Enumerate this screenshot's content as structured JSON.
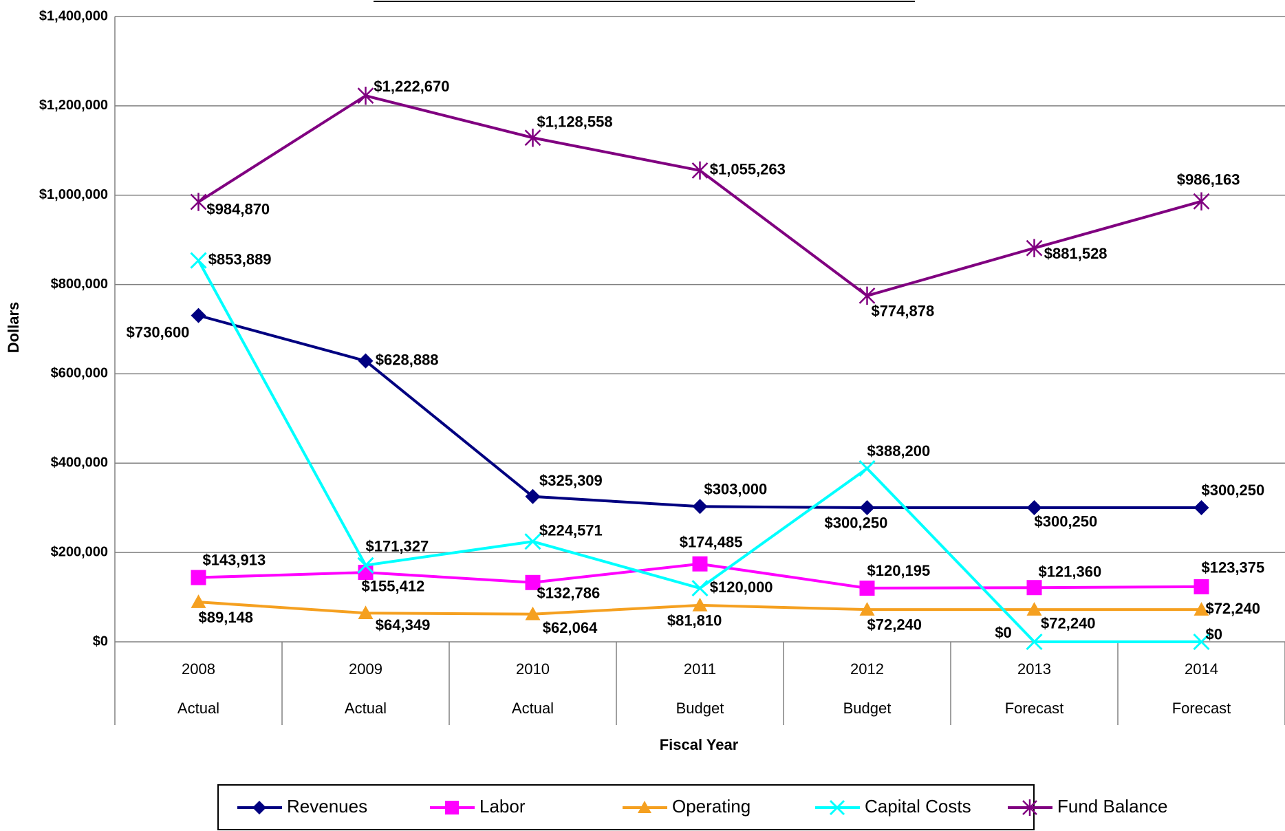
{
  "chart_data": {
    "type": "line",
    "y_axis_label": "Dollars",
    "x_axis_label": "Fiscal Year",
    "categories": [
      [
        "2008",
        "Actual"
      ],
      [
        "2009",
        "Actual"
      ],
      [
        "2010",
        "Actual"
      ],
      [
        "2011",
        "Budget"
      ],
      [
        "2012",
        "Budget"
      ],
      [
        "2013",
        "Forecast"
      ],
      [
        "2014",
        "Forecast"
      ]
    ],
    "ylim": [
      0,
      1400000
    ],
    "yticks": [
      {
        "value": 0,
        "label": "$0"
      },
      {
        "value": 200000,
        "label": "$200,000"
      },
      {
        "value": 400000,
        "label": "$400,000"
      },
      {
        "value": 600000,
        "label": "$600,000"
      },
      {
        "value": 800000,
        "label": "$800,000"
      },
      {
        "value": 1000000,
        "label": "$1,000,000"
      },
      {
        "value": 1200000,
        "label": "$1,200,000"
      },
      {
        "value": 1400000,
        "label": "$1,400,000"
      }
    ],
    "grid": true,
    "legend": "bottom",
    "series": [
      {
        "name": "Revenues",
        "color": "#000080",
        "marker": "diamond",
        "values": [
          730600,
          628888,
          325309,
          303000,
          300250,
          300250,
          300250
        ],
        "value_labels": [
          "$730,600",
          "$628,888",
          "$325,309",
          "$303,000",
          "$300,250",
          "$300,250",
          "$300,250"
        ]
      },
      {
        "name": "Labor",
        "color": "#ff00ff",
        "marker": "square",
        "values": [
          143913,
          155412,
          132786,
          174485,
          120195,
          121360,
          123375
        ],
        "value_labels": [
          "$143,913",
          "$155,412",
          "$132,786",
          "$174,485",
          "$120,195",
          "$121,360",
          "$123,375"
        ]
      },
      {
        "name": "Operating",
        "color": "#f5a020",
        "marker": "triangle",
        "values": [
          89148,
          64349,
          62064,
          81810,
          72240,
          72240,
          72240
        ],
        "value_labels": [
          "$89,148",
          "$64,349",
          "$62,064",
          "$81,810",
          "$72,240",
          "$72,240",
          "$72,240"
        ]
      },
      {
        "name": "Capital Costs",
        "color": "#00ffff",
        "marker": "x",
        "values": [
          853889,
          171327,
          224571,
          120000,
          388200,
          0,
          0
        ],
        "value_labels": [
          "$853,889",
          "$171,327",
          "$224,571",
          "$120,000",
          "$388,200",
          "$0",
          "$0"
        ]
      },
      {
        "name": "Fund Balance",
        "color": "#800080",
        "marker": "star",
        "values": [
          984870,
          1222670,
          1128558,
          1055263,
          774878,
          881528,
          986163
        ],
        "value_labels": [
          "$984,870",
          "$1,222,670",
          "$1,128,558",
          "$1,055,263",
          "$774,878",
          "$881,528",
          "$986,163"
        ]
      }
    ]
  }
}
